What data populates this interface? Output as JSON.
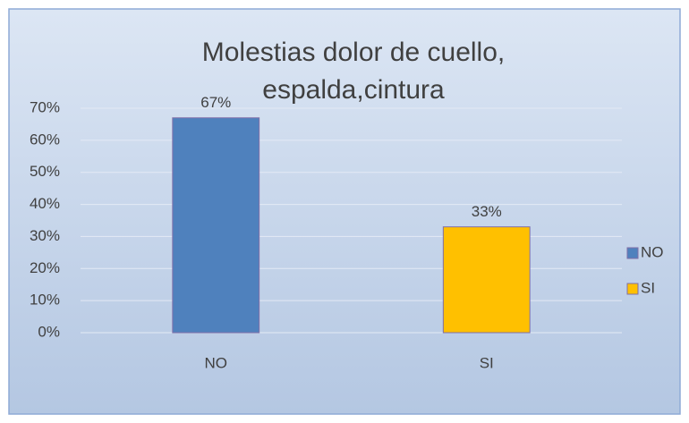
{
  "chart_data": {
    "type": "bar",
    "title": "Molestias dolor de cuello, espalda,cintura",
    "categories": [
      "NO",
      "SI"
    ],
    "values": [
      67,
      33
    ],
    "value_labels": [
      "67%",
      "33%"
    ],
    "colors": [
      "#4f81bd",
      "#ffc000"
    ],
    "ylim": [
      0,
      70
    ],
    "yticks": [
      {
        "value": 0,
        "label": "0%"
      },
      {
        "value": 10,
        "label": "10%"
      },
      {
        "value": 20,
        "label": "20%"
      },
      {
        "value": 30,
        "label": "30%"
      },
      {
        "value": 40,
        "label": "40%"
      },
      {
        "value": 50,
        "label": "50%"
      },
      {
        "value": 60,
        "label": "60%"
      },
      {
        "value": 70,
        "label": "70%"
      }
    ],
    "grid": true,
    "legend": "right"
  }
}
